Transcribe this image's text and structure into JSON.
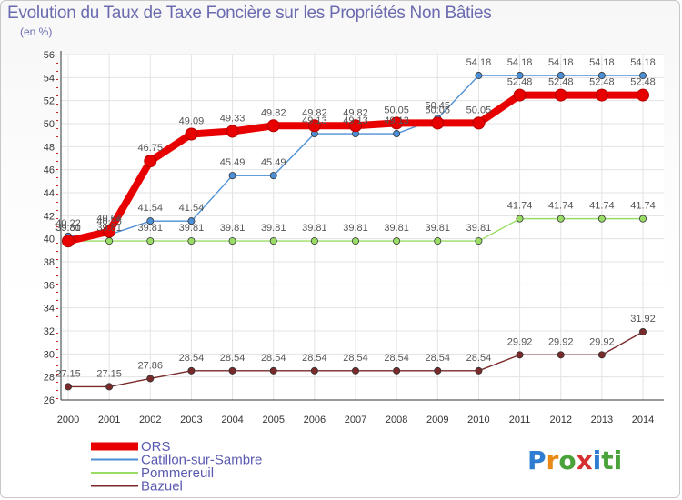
{
  "title": "Evolution du Taux de Taxe Foncière sur les Propriétés Non Bâties",
  "unit": "(en %)",
  "logo": [
    "P",
    "r",
    "o",
    "x",
    "i",
    "ti"
  ],
  "chart_data": {
    "type": "line",
    "title": "Evolution du Taux de Taxe Foncière sur les Propriétés Non Bâties",
    "ylabel": "(en %)",
    "xlabel": "",
    "ylim": [
      26,
      56
    ],
    "yticks": [
      26,
      28,
      30,
      32,
      34,
      36,
      38,
      40,
      42,
      44,
      46,
      48,
      50,
      52,
      54,
      56
    ],
    "categories": [
      "2000",
      "2001",
      "2002",
      "2003",
      "2004",
      "2005",
      "2006",
      "2007",
      "2008",
      "2009",
      "2010",
      "2011",
      "2012",
      "2013",
      "2014"
    ],
    "series": [
      {
        "name": "ORS",
        "color": "#e80000",
        "values": [
          39.8,
          40.64,
          46.75,
          49.09,
          49.33,
          49.82,
          49.82,
          49.82,
          50.05,
          50.05,
          50.05,
          52.48,
          52.48,
          52.48,
          52.48
        ],
        "labels": [
          "39.80",
          "40.64",
          "46.75",
          "49.09",
          "49.33",
          "49.82",
          "49.82",
          "49.82",
          "50.05",
          "50.05",
          "50.05",
          "52.48",
          "52.48",
          "52.48",
          "52.48"
        ]
      },
      {
        "name": "Catillon-sur-Sambre",
        "color": "#4d8fd6",
        "values": [
          40.22,
          40.35,
          41.54,
          41.54,
          45.49,
          45.49,
          49.13,
          49.13,
          49.13,
          50.45,
          54.18,
          54.18,
          54.18,
          54.18,
          54.18
        ],
        "labels": [
          "40.22",
          "40.35",
          "41.54",
          "41.54",
          "45.49",
          "45.49",
          "49.13",
          "49.13",
          "49.13",
          "50.45",
          "54.18",
          "54.18",
          "54.18",
          "54.18",
          "54.18"
        ]
      },
      {
        "name": "Pommereuil",
        "color": "#99dd66",
        "values": [
          39.81,
          39.81,
          39.81,
          39.81,
          39.81,
          39.81,
          39.81,
          39.81,
          39.81,
          39.81,
          39.81,
          41.74,
          41.74,
          41.74,
          41.74
        ],
        "labels": [
          "39.81",
          "39.81",
          "39.81",
          "39.81",
          "39.81",
          "39.81",
          "39.81",
          "39.81",
          "39.81",
          "39.81",
          "39.81",
          "41.74",
          "41.74",
          "41.74",
          "41.74"
        ]
      },
      {
        "name": "Bazuel",
        "color": "#7a2a2a",
        "values": [
          27.15,
          27.15,
          27.86,
          28.54,
          28.54,
          28.54,
          28.54,
          28.54,
          28.54,
          28.54,
          28.54,
          29.92,
          29.92,
          29.92,
          31.92
        ],
        "labels": [
          "27.15",
          "27.15",
          "27.86",
          "28.54",
          "28.54",
          "28.54",
          "28.54",
          "28.54",
          "28.54",
          "28.54",
          "28.54",
          "29.92",
          "29.92",
          "29.92",
          "31.92"
        ]
      }
    ]
  }
}
